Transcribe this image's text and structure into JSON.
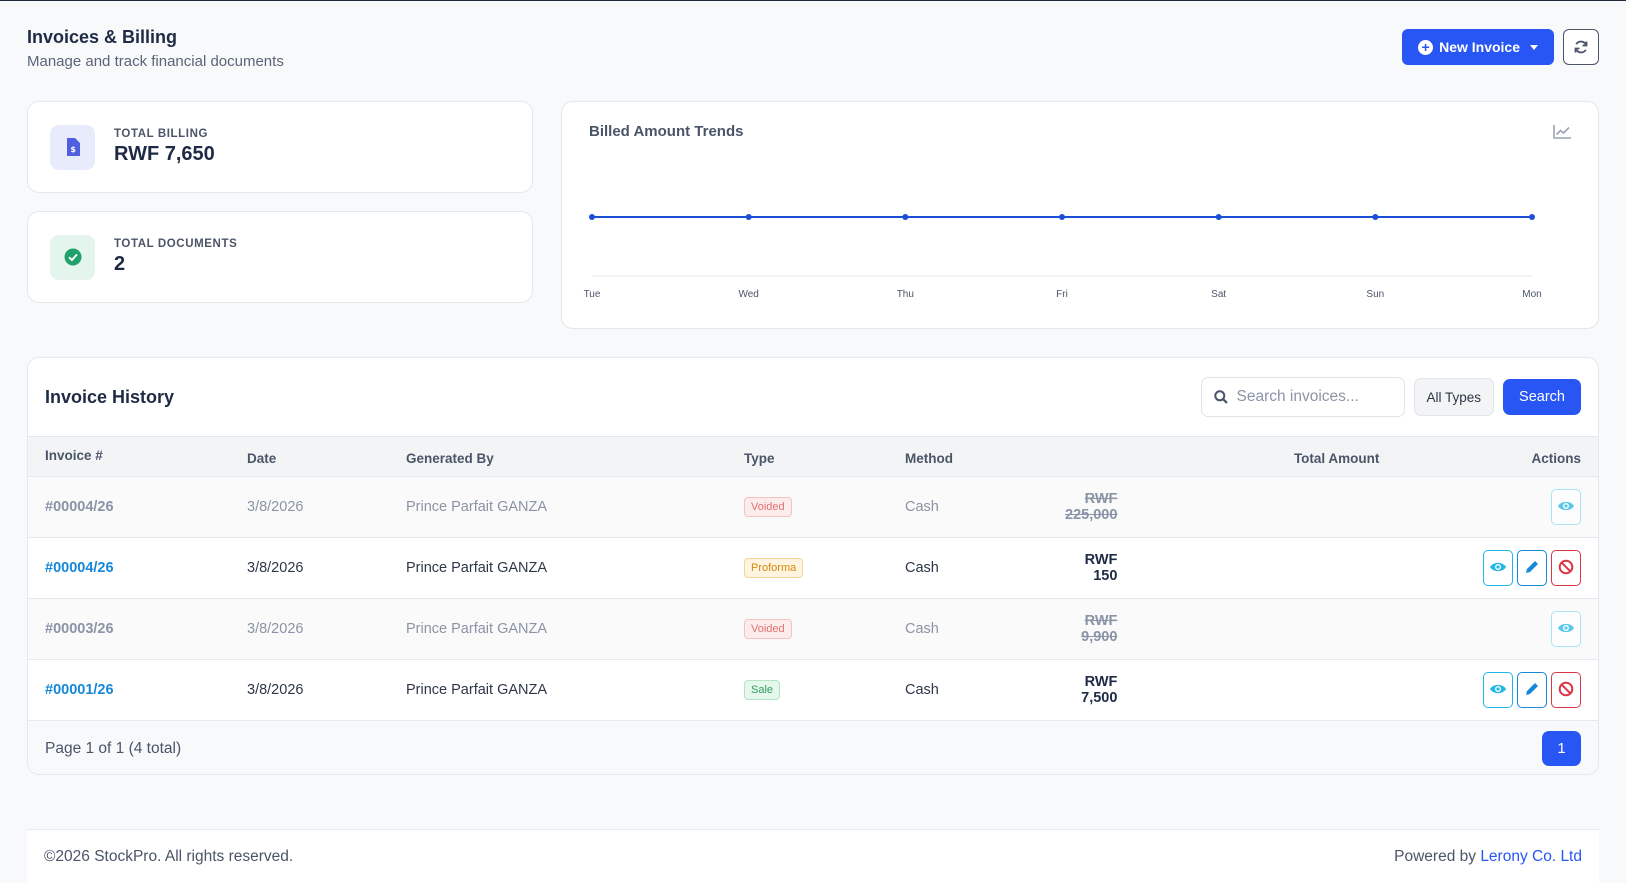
{
  "header": {
    "title": "Invoices & Billing",
    "subtitle": "Manage and track financial documents",
    "new_invoice_label": "New Invoice"
  },
  "stats": {
    "total_billing": {
      "label": "TOTAL BILLING",
      "value": "RWF 7,650",
      "icon": "file-invoice-dollar-icon",
      "color": "#4f5fe0"
    },
    "total_documents": {
      "label": "TOTAL DOCUMENTS",
      "value": "2",
      "icon": "check-circle-icon",
      "color": "#22a06b"
    }
  },
  "chart": {
    "title": "Billed Amount Trends",
    "icon": "line-chart-icon"
  },
  "chart_data": {
    "type": "line",
    "categories": [
      "Tue",
      "Wed",
      "Thu",
      "Fri",
      "Sat",
      "Sun",
      "Mon"
    ],
    "series": [
      {
        "values": [
          0,
          0,
          0,
          0,
          0,
          0,
          0
        ],
        "color": "#1d4ed8"
      }
    ],
    "grid": false,
    "legend": "none"
  },
  "table": {
    "title": "Invoice History",
    "search_placeholder": "Search invoices...",
    "filter_label": "All Types",
    "search_label": "Search",
    "columns": [
      "Invoice #",
      "Date",
      "Generated By",
      "Type",
      "Method",
      "Total Amount",
      "Actions"
    ],
    "rows": [
      {
        "invoice": "#00004/26",
        "date": "3/8/2026",
        "generated_by": "Prince Parfait GANZA",
        "type": "Voided",
        "method": "Cash",
        "amount": "RWF 225,000",
        "status": "voided"
      },
      {
        "invoice": "#00004/26",
        "date": "3/8/2026",
        "generated_by": "Prince Parfait GANZA",
        "type": "Proforma",
        "method": "Cash",
        "amount": "RWF 150",
        "status": "proforma"
      },
      {
        "invoice": "#00003/26",
        "date": "3/8/2026",
        "generated_by": "Prince Parfait GANZA",
        "type": "Voided",
        "method": "Cash",
        "amount": "RWF 9,900",
        "status": "voided"
      },
      {
        "invoice": "#00001/26",
        "date": "3/8/2026",
        "generated_by": "Prince Parfait GANZA",
        "type": "Sale",
        "method": "Cash",
        "amount": "RWF 7,500",
        "status": "sale"
      }
    ],
    "pagination": {
      "info": "Page 1 of 1 (4 total)",
      "current_page": "1"
    }
  },
  "footer": {
    "copyright": "©2026 StockPro. All rights reserved.",
    "powered_by": "Powered by",
    "company": "Lerony Co. Ltd"
  },
  "colors": {
    "primary": "#2756f5",
    "info": "#22b8e6",
    "danger": "#dc3545",
    "link": "#1588d8"
  }
}
